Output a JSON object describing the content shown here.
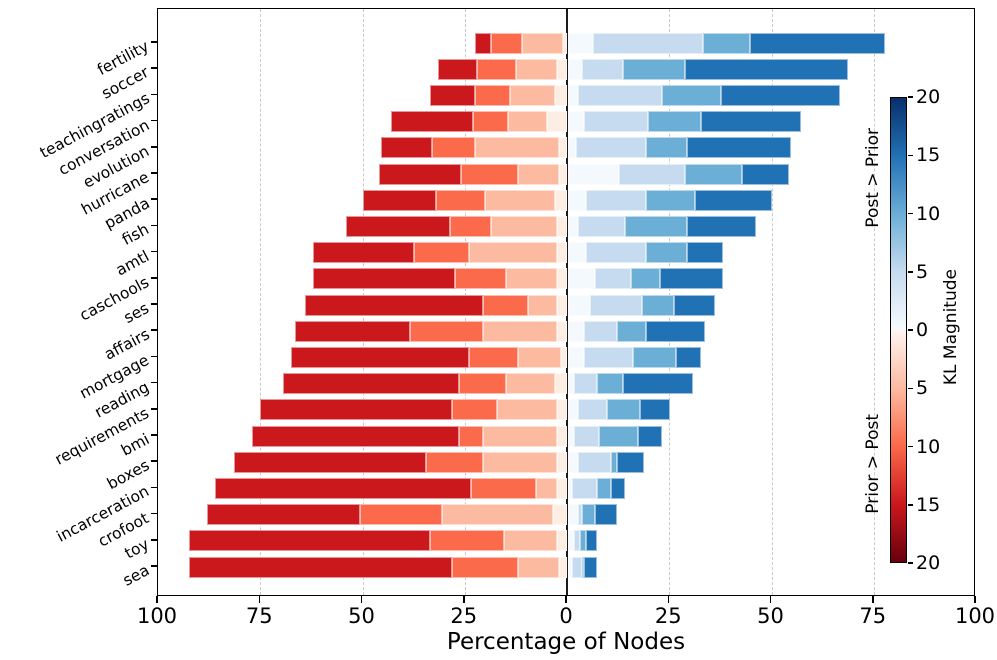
{
  "chart_data": {
    "type": "bar",
    "subtype": "diverging-stacked-horizontal",
    "title": "",
    "xlabel": "Percentage of Nodes",
    "ylabel": "",
    "x_axis": {
      "range": [
        -100,
        100
      ],
      "tick_values": [
        -100,
        -75,
        -50,
        -25,
        0,
        25,
        50,
        75,
        100
      ],
      "tick_labels": [
        "100",
        "75",
        "50",
        "25",
        "0",
        "25",
        "50",
        "75",
        "100"
      ],
      "grid_values": [
        -75,
        -50,
        -25,
        25,
        50,
        75
      ],
      "grid_style": "dashed",
      "zero_line": 0
    },
    "categories": [
      "fertility",
      "soccer",
      "teachingratings",
      "conversation",
      "evolution",
      "hurricane",
      "panda",
      "fish",
      "amtl",
      "caschools",
      "ses",
      "affairs",
      "mortgage",
      "reading",
      "requirements",
      "bmi",
      "boxes",
      "incarceration",
      "crofoot",
      "toy",
      "sea"
    ],
    "segment_meaning": "percent of nodes binned by KL magnitude; left bars = Prior > Post (reds, darkest = largest KL), right bars = Post > Prior (blues, darkest = largest KL)",
    "left_segment_colors": [
      "#cb181d",
      "#fb6a4a",
      "#fcbba1",
      "#fdeee4"
    ],
    "right_segment_colors": [
      "#f4f9fe",
      "#c6dbef",
      "#6baed6",
      "#2171b5"
    ],
    "rows": [
      {
        "category": "fertility",
        "left_out_to_in": [
          4,
          7.5,
          10,
          1
        ],
        "right_in_to_out": [
          6,
          27,
          11.5,
          33
        ]
      },
      {
        "category": "soccer",
        "left_out_to_in": [
          9.5,
          9.5,
          10,
          2.5
        ],
        "right_in_to_out": [
          3.5,
          10,
          15,
          40
        ]
      },
      {
        "category": "teachingratings",
        "left_out_to_in": [
          11,
          8.5,
          11,
          3
        ],
        "right_in_to_out": [
          2.5,
          20.5,
          14.5,
          29
        ]
      },
      {
        "category": "conversation",
        "left_out_to_in": [
          20,
          8.5,
          9.5,
          5
        ],
        "right_in_to_out": [
          4,
          15.5,
          13,
          24.5
        ]
      },
      {
        "category": "evolution",
        "left_out_to_in": [
          12.5,
          10.5,
          20.5,
          2
        ],
        "right_in_to_out": [
          2,
          17,
          10,
          25.5
        ]
      },
      {
        "category": "hurricane",
        "left_out_to_in": [
          20,
          14,
          10,
          2
        ],
        "right_in_to_out": [
          12.5,
          16,
          14,
          11.5
        ]
      },
      {
        "category": "panda",
        "left_out_to_in": [
          18,
          12,
          17,
          3
        ],
        "right_in_to_out": [
          4.5,
          14.5,
          12,
          19
        ]
      },
      {
        "category": "fish",
        "left_out_to_in": [
          25.5,
          10,
          16,
          2.5
        ],
        "right_in_to_out": [
          2.5,
          11.5,
          15,
          17
        ]
      },
      {
        "category": "amtl",
        "left_out_to_in": [
          24.5,
          13.5,
          21.5,
          2.5
        ],
        "right_in_to_out": [
          4.5,
          14.5,
          10,
          9
        ]
      },
      {
        "category": "caschools",
        "left_out_to_in": [
          34.5,
          12.5,
          12.5,
          2.5
        ],
        "right_in_to_out": [
          6.5,
          9,
          7,
          15.5
        ]
      },
      {
        "category": "ses",
        "left_out_to_in": [
          43.5,
          11,
          7,
          2.5
        ],
        "right_in_to_out": [
          5.5,
          12.5,
          8,
          10
        ]
      },
      {
        "category": "affairs",
        "left_out_to_in": [
          28,
          18,
          18,
          2.5
        ],
        "right_in_to_out": [
          4,
          8,
          7,
          14.5
        ]
      },
      {
        "category": "mortgage",
        "left_out_to_in": [
          43.5,
          12,
          10.5,
          1.5
        ],
        "right_in_to_out": [
          4,
          12,
          10.5,
          6
        ]
      },
      {
        "category": "reading",
        "left_out_to_in": [
          43,
          11.5,
          12,
          3
        ],
        "right_in_to_out": [
          1.5,
          5.5,
          6.5,
          17
        ]
      },
      {
        "category": "requirements",
        "left_out_to_in": [
          47,
          11,
          14.5,
          2.5
        ],
        "right_in_to_out": [
          2.5,
          7,
          8,
          7.5
        ]
      },
      {
        "category": "bmi",
        "left_out_to_in": [
          50.5,
          6,
          18,
          2.5
        ],
        "right_in_to_out": [
          1.5,
          6,
          9.5,
          6
        ]
      },
      {
        "category": "boxes",
        "left_out_to_in": [
          47,
          14,
          18,
          2.5
        ],
        "right_in_to_out": [
          2.5,
          8,
          1.5,
          6.5
        ]
      },
      {
        "category": "incarceration",
        "left_out_to_in": [
          62.5,
          16,
          5,
          2.5
        ],
        "right_in_to_out": [
          1,
          6,
          3.5,
          3.5
        ]
      },
      {
        "category": "crofoot",
        "left_out_to_in": [
          37.5,
          20,
          27,
          3.5
        ],
        "right_in_to_out": [
          2.5,
          1,
          3,
          5.5
        ]
      },
      {
        "category": "toy",
        "left_out_to_in": [
          59,
          18,
          13,
          2.5
        ],
        "right_in_to_out": [
          1.5,
          1.5,
          1.5,
          2.5
        ]
      },
      {
        "category": "sea",
        "left_out_to_in": [
          64.5,
          16,
          10,
          2
        ],
        "right_in_to_out": [
          1,
          2.5,
          0.5,
          3
        ]
      }
    ],
    "colorbar": {
      "label": "KL Magnitude",
      "top_label": "Post > Prior",
      "bottom_label": "Prior > Post",
      "range": [
        0,
        20
      ],
      "tick_labels": [
        "20",
        "15",
        "10",
        "5",
        "0",
        "5",
        "10",
        "15",
        "20"
      ],
      "gradient_top_to_bottom": [
        "#08306b",
        "#2171b5",
        "#6baed6",
        "#c6dbef",
        "#f7fbff",
        "#fff5f0",
        "#fcbba1",
        "#fb6a4a",
        "#cb181d",
        "#67000d"
      ]
    }
  }
}
